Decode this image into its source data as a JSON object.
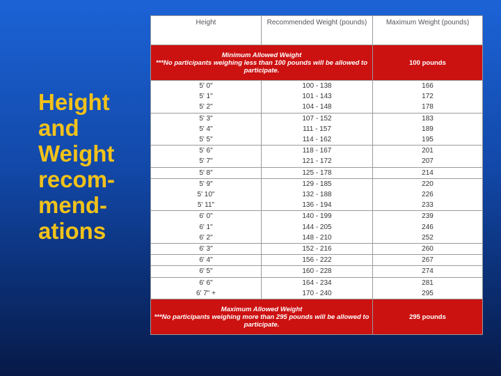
{
  "title": {
    "lines": [
      "Height",
      "and",
      "Weight",
      "recom-",
      "mend-",
      "ations"
    ]
  },
  "table": {
    "header": [
      "Height",
      "Recommended Weight (pounds)",
      "Maximum Weight (pounds)"
    ],
    "minimum": {
      "title": "Minimum Allowed Weight",
      "note": "***No participants weighing less than 100 pounds will be allowed to participate.",
      "value": "100 pounds"
    },
    "groups": [
      [
        [
          "5' 0\"",
          "100 - 138",
          "166"
        ],
        [
          "5' 1\"",
          "101 - 143",
          "172"
        ],
        [
          "5' 2\"",
          "104 - 148",
          "178"
        ]
      ],
      [
        [
          "5' 3\"",
          "107 - 152",
          "183"
        ],
        [
          "5' 4\"",
          "111 - 157",
          "189"
        ],
        [
          "5' 5\"",
          "114 - 162",
          "195"
        ]
      ],
      [
        [
          "5' 6\"",
          "118 - 167",
          "201"
        ],
        [
          "5' 7\"",
          "121 - 172",
          "207"
        ]
      ],
      [
        [
          "5' 8\"",
          "125 - 178",
          "214"
        ]
      ],
      [
        [
          "5' 9\"",
          "129 - 185",
          "220"
        ],
        [
          "5' 10\"",
          "132 - 188",
          "226"
        ],
        [
          "5' 11\"",
          "136 - 194",
          "233"
        ]
      ],
      [
        [
          "6' 0\"",
          "140 - 199",
          "239"
        ],
        [
          "6' 1\"",
          "144 - 205",
          "246"
        ],
        [
          "6' 2\"",
          "148 - 210",
          "252"
        ]
      ],
      [
        [
          "6' 3\"",
          "152 - 216",
          "260"
        ]
      ],
      [
        [
          "6' 4\"",
          "156 - 222",
          "267"
        ]
      ],
      [
        [
          "6' 5\"",
          "160 - 228",
          "274"
        ]
      ],
      [
        [
          "6' 6\"",
          "164 - 234",
          "281"
        ],
        [
          "6' 7\" +",
          "170 - 240",
          "295"
        ]
      ]
    ],
    "maximum": {
      "title": "Maximum Allowed Weight",
      "note": "***No participants weighing more than 295 pounds will be allowed to participate.",
      "value": "295 pounds"
    }
  }
}
